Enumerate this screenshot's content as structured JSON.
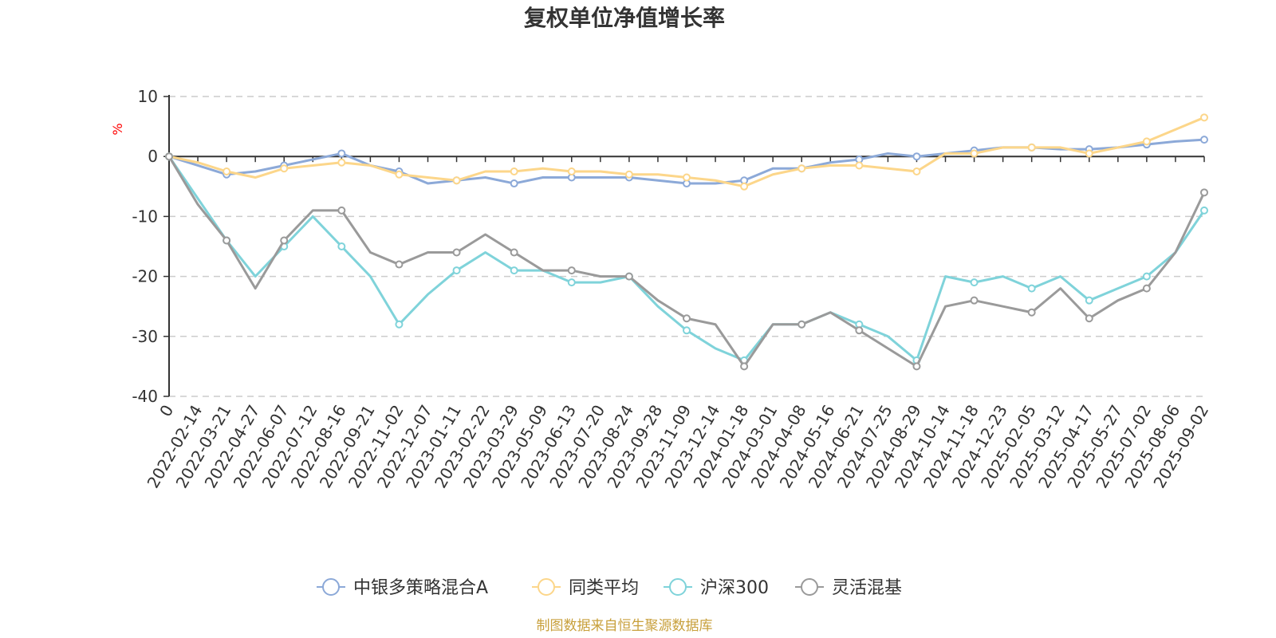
{
  "chart_data": {
    "type": "line",
    "title": "复权单位净值增长率",
    "y_unit": "%",
    "ylim": [
      -40,
      10
    ],
    "y_ticks": [
      "10",
      "0",
      "-10",
      "-20",
      "-30",
      "-40"
    ],
    "y_tick_values": [
      10,
      0,
      -10,
      -20,
      -30,
      -40
    ],
    "x_labels": [
      "0",
      "2022-02-14",
      "2022-03-21",
      "2022-04-27",
      "2022-06-07",
      "2022-07-12",
      "2022-08-16",
      "2022-09-21",
      "2022-11-02",
      "2022-12-07",
      "2023-01-11",
      "2023-02-22",
      "2023-03-29",
      "2023-05-09",
      "2023-06-13",
      "2023-07-20",
      "2023-08-24",
      "2023-09-28",
      "2023-11-09",
      "2023-12-14",
      "2024-01-18",
      "2024-03-01",
      "2024-04-08",
      "2024-05-16",
      "2024-06-21",
      "2024-07-25",
      "2024-08-29",
      "2024-10-14",
      "2024-11-18",
      "2024-12-23",
      "2025-02-05",
      "2025-03-12",
      "2025-04-17",
      "2025-05-27",
      "2025-07-02",
      "2025-08-06",
      "2025-09-02"
    ],
    "grid": true,
    "legend_position": "bottom",
    "series": [
      {
        "name": "中银多策略混合A",
        "color": "#8ca9d8",
        "values": [
          0,
          -1.5,
          -3,
          -2.5,
          -1.5,
          -0.5,
          0.5,
          -1.5,
          -2.5,
          -4.5,
          -4,
          -3.5,
          -4.5,
          -3.5,
          -3.5,
          -3.5,
          -3.5,
          -4,
          -4.5,
          -4.5,
          -4,
          -2,
          -2,
          -1,
          -0.5,
          0.5,
          0,
          0.5,
          1,
          1.5,
          1.5,
          1.2,
          1.2,
          1.5,
          2,
          2.5,
          2.8
        ]
      },
      {
        "name": "同类平均",
        "color": "#fcd68a",
        "values": [
          0,
          -1,
          -2.5,
          -3.5,
          -2,
          -1.5,
          -1,
          -1.5,
          -3,
          -3.5,
          -4,
          -2.5,
          -2.5,
          -2,
          -2.5,
          -2.5,
          -3,
          -3,
          -3.5,
          -4,
          -5,
          -3,
          -2,
          -1.5,
          -1.5,
          -2,
          -2.5,
          0.5,
          0.5,
          1.5,
          1.5,
          1.5,
          0.5,
          1.5,
          2.5,
          4.5,
          6.5
        ]
      },
      {
        "name": "沪深300",
        "color": "#7fd3da",
        "values": [
          0,
          -7,
          -14,
          -20,
          -15,
          -10,
          -15,
          -20,
          -28,
          -23,
          -19,
          -16,
          -19,
          -19,
          -21,
          -21,
          -20,
          -25,
          -29,
          -32,
          -34,
          -28,
          -28,
          -26,
          -28,
          -30,
          -34,
          -20,
          -21,
          -20,
          -22,
          -20,
          -24,
          -22,
          -20,
          -16,
          -9
        ]
      },
      {
        "name": "灵活混基",
        "color": "#9a9a9a",
        "values": [
          0,
          -8,
          -14,
          -22,
          -14,
          -9,
          -9,
          -16,
          -18,
          -16,
          -16,
          -13,
          -16,
          -19,
          -19,
          -20,
          -20,
          -24,
          -27,
          -28,
          -35,
          -28,
          -28,
          -26,
          -29,
          -32,
          -35,
          -25,
          -24,
          -25,
          -26,
          -22,
          -27,
          -24,
          -22,
          -16,
          -6
        ]
      }
    ]
  },
  "source_text": "制图数据来自恒生聚源数据库"
}
